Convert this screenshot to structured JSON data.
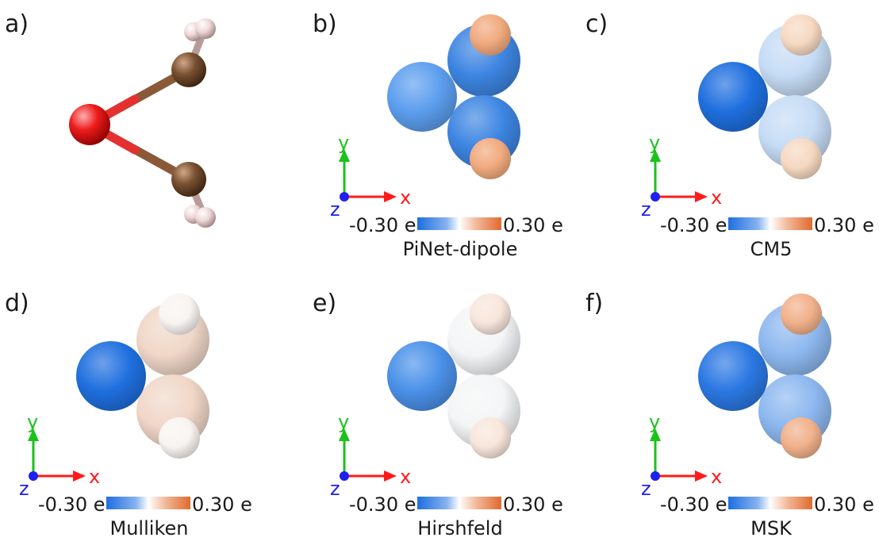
{
  "colors": {
    "oxygen_ball": "#ee1c1c",
    "carbon_ball": "#7a5232",
    "hydrogen_ball": "#f0dada",
    "bond_red": "#e83030",
    "bond_brown": "#8a5a38",
    "x_axis": "#ff1a1a",
    "y_axis": "#1ac21a",
    "z_axis": "#2020ee",
    "scale_negative": "#1e6ee0",
    "scale_zero": "#ffffff",
    "scale_positive": "#e06a30"
  },
  "axis_labels": {
    "x": "x",
    "y": "y",
    "z": "z"
  },
  "colorbar": {
    "min_label": "-0.30 e",
    "max_label": "0.30 e"
  },
  "panels": [
    {
      "label": "a)",
      "method": "",
      "style": "ball-and-stick"
    },
    {
      "label": "b)",
      "method": "PiNet-dipole",
      "colors": {
        "O": "#5c9eee",
        "C_top": "#3d85e2",
        "C_bot": "#3d85e2",
        "H_top": "#f1aa7e",
        "H_bot": "#f1aa7e"
      }
    },
    {
      "label": "c)",
      "method": "CM5",
      "colors": {
        "O": "#1f6fdf",
        "C_top": "#c6dcf5",
        "C_bot": "#c6dcf5",
        "H_top": "#f6d9c2",
        "H_bot": "#f6d9c2"
      }
    },
    {
      "label": "d)",
      "method": "Mulliken",
      "colors": {
        "O": "#1f6fdf",
        "C_top": "#f0d7c8",
        "C_bot": "#f0d7c8",
        "H_top": "#f8f4f1",
        "H_bot": "#f8f4f1"
      }
    },
    {
      "label": "e)",
      "method": "Hirshfeld",
      "colors": {
        "O": "#4b91e9",
        "C_top": "#f4f5f6",
        "C_bot": "#f4f5f6",
        "H_top": "#f8e6dc",
        "H_bot": "#f8e6dc"
      }
    },
    {
      "label": "f)",
      "method": "MSK",
      "colors": {
        "O": "#2b78e3",
        "C_top": "#8db8ef",
        "C_bot": "#8db8ef",
        "H_top": "#f1b18b",
        "H_bot": "#f1b18b"
      }
    }
  ]
}
